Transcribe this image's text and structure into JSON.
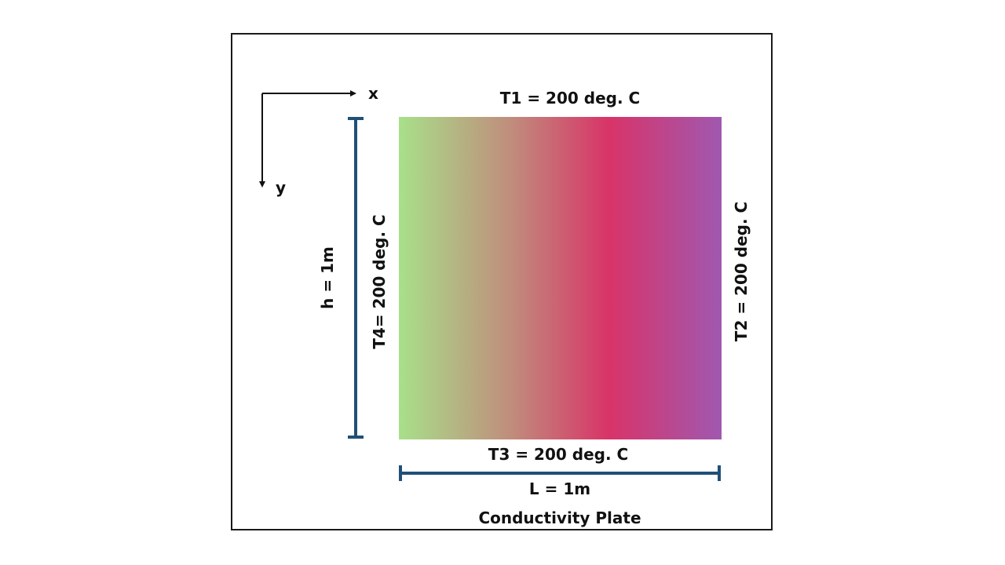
{
  "diagram": {
    "title": "Conductivity Plate",
    "boundary_top": "T1 = 200 deg. C",
    "boundary_right": "T2 = 200 deg. C",
    "boundary_bottom": "T3 = 200 deg. C",
    "boundary_left": "T4= 200 deg. C",
    "height_label": "h = 1m",
    "length_label": "L = 1m",
    "axis_x_label": "x",
    "axis_y_label": "y"
  },
  "colors": {
    "gradient_stops": [
      "#a8e08a",
      "#c08c7c",
      "#d83468",
      "#a058b0"
    ],
    "dimension_line": "#1f5078",
    "frame": "#1a1a1a",
    "text": "#111111"
  }
}
